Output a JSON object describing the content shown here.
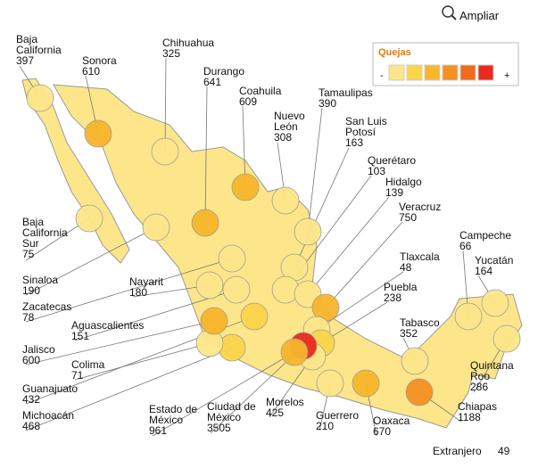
{
  "header": {
    "action": "Ampliar"
  },
  "legend": {
    "title": "Quejas",
    "low": "-",
    "high": "+",
    "colors": [
      "#fde68a",
      "#fbd54a",
      "#f7b62b",
      "#f59022",
      "#f06b1b",
      "#e82b1e"
    ]
  },
  "states": [
    {
      "name": "Baja\nCalifornia",
      "value": 397,
      "color": "#fde68a"
    },
    {
      "name": "Sonora",
      "value": 610,
      "color": "#f7b62b"
    },
    {
      "name": "Chihuahua",
      "value": 325,
      "color": "#fde68a"
    },
    {
      "name": "Durango",
      "value": 641,
      "color": "#f7b62b"
    },
    {
      "name": "Coahuila",
      "value": 609,
      "color": "#f7b62b"
    },
    {
      "name": "Nuevo\nLeón",
      "value": 308,
      "color": "#fde68a"
    },
    {
      "name": "Tamaulipas",
      "value": 390,
      "color": "#fde68a"
    },
    {
      "name": "San Luis\nPotosí",
      "value": 163,
      "color": "#fde68a"
    },
    {
      "name": "Querétaro",
      "value": 103,
      "color": "#fde68a"
    },
    {
      "name": "Hidalgo",
      "value": 139,
      "color": "#fde68a"
    },
    {
      "name": "Veracruz",
      "value": 750,
      "color": "#f7b62b"
    },
    {
      "name": "Tlaxcala",
      "value": 48,
      "color": "#fde68a"
    },
    {
      "name": "Puebla",
      "value": 238,
      "color": "#fbd54a"
    },
    {
      "name": "Tabasco",
      "value": 352,
      "color": "#fde68a"
    },
    {
      "name": "Campeche",
      "value": 66,
      "color": "#fde68a"
    },
    {
      "name": "Yucatán",
      "value": 164,
      "color": "#fde68a"
    },
    {
      "name": "Quintana\nRoo",
      "value": 286,
      "color": "#fde68a"
    },
    {
      "name": "Chiapas",
      "value": 1188,
      "color": "#f59022"
    },
    {
      "name": "Oaxaca",
      "value": 670,
      "color": "#f7b62b"
    },
    {
      "name": "Guerrero",
      "value": 210,
      "color": "#fde68a"
    },
    {
      "name": "Morelos",
      "value": 425,
      "color": "#fde68a"
    },
    {
      "name": "Ciudad de\nMéxico",
      "value": 3505,
      "color": "#e82b1e"
    },
    {
      "name": "Estado de\nMéxico",
      "value": 961,
      "color": "#f7b62b"
    },
    {
      "name": "Michoacán",
      "value": 468,
      "color": "#fbd54a"
    },
    {
      "name": "Guanajuato",
      "value": 432,
      "color": "#fbd54a"
    },
    {
      "name": "Colima",
      "value": 71,
      "color": "#fde68a"
    },
    {
      "name": "Jalisco",
      "value": 600,
      "color": "#f7b62b"
    },
    {
      "name": "Aguascalientes",
      "value": 151,
      "color": "#fde68a"
    },
    {
      "name": "Zacatecas",
      "value": 78,
      "color": "#fde68a"
    },
    {
      "name": "Nayarit",
      "value": 180,
      "color": "#fde68a"
    },
    {
      "name": "Sinaloa",
      "value": 190,
      "color": "#fde68a"
    },
    {
      "name": "Baja\nCalifornia\nSur",
      "value": 75,
      "color": "#fde68a"
    }
  ],
  "abroad": {
    "name": "Extranjero",
    "value": 49
  }
}
